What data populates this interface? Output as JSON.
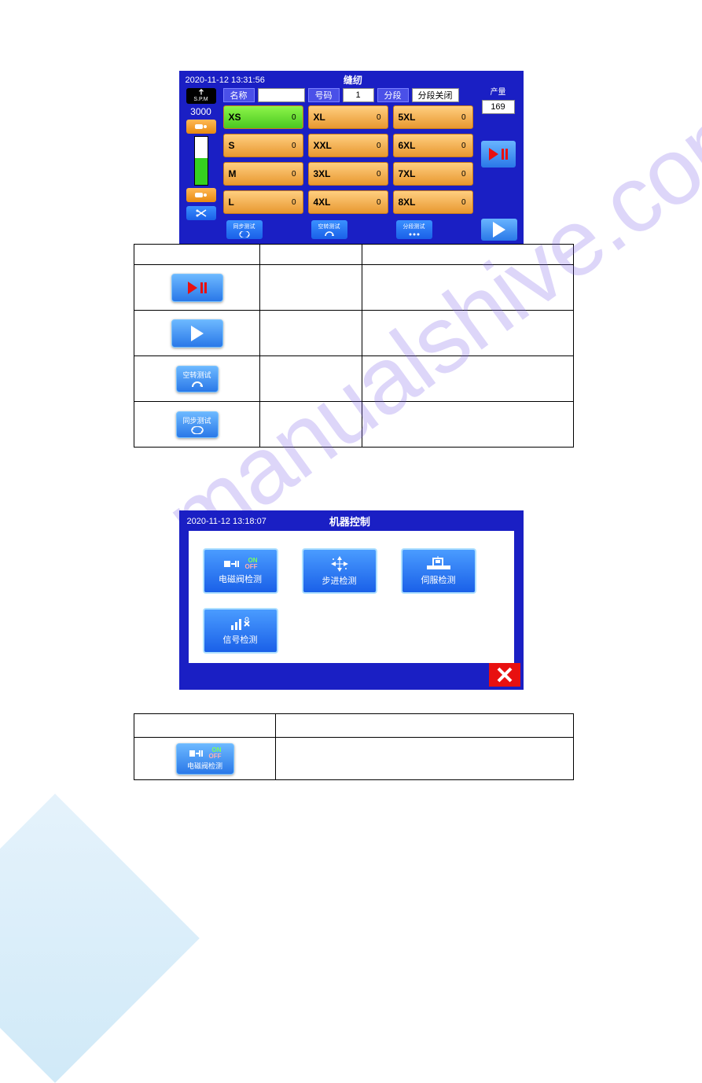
{
  "hmi1": {
    "datetime": "2020-11-12 13:31:56",
    "title": "缝纫",
    "spm_label": "S.P.M",
    "spm_value": "3000",
    "name_label": "名称",
    "name_value": "",
    "number_label": "号码",
    "number_value": "1",
    "segment_label": "分段",
    "segment_value": "分段关闭",
    "prod_label": "产量",
    "prod_value": "169",
    "sizes": [
      {
        "label": "XS",
        "value": "0",
        "selected": true
      },
      {
        "label": "XL",
        "value": "0"
      },
      {
        "label": "5XL",
        "value": "0"
      },
      {
        "label": "S",
        "value": "0"
      },
      {
        "label": "XXL",
        "value": "0"
      },
      {
        "label": "6XL",
        "value": "0"
      },
      {
        "label": "M",
        "value": "0"
      },
      {
        "label": "3XL",
        "value": "0"
      },
      {
        "label": "7XL",
        "value": "0"
      },
      {
        "label": "L",
        "value": "0"
      },
      {
        "label": "4XL",
        "value": "0"
      },
      {
        "label": "8XL",
        "value": "0"
      }
    ],
    "bottom": {
      "sync": "同步测试",
      "idle": "空转测试",
      "seq": "分段测试"
    }
  },
  "table1": {
    "rows": [
      {
        "icon": "play-pause-red"
      },
      {
        "icon": "play-white"
      },
      {
        "icon": "idle",
        "label": "空转测试"
      },
      {
        "icon": "sync",
        "label": "同步测试"
      }
    ]
  },
  "hmi2": {
    "datetime": "2020-11-12 13:18:07",
    "title": "机器控制",
    "btns": {
      "solenoid": "电磁阀检测",
      "step": "步进检测",
      "servo": "伺服检测",
      "signal": "信号检测"
    }
  },
  "table2": {
    "btn_label": "电磁阀检测"
  },
  "watermark": "manualshive.com"
}
